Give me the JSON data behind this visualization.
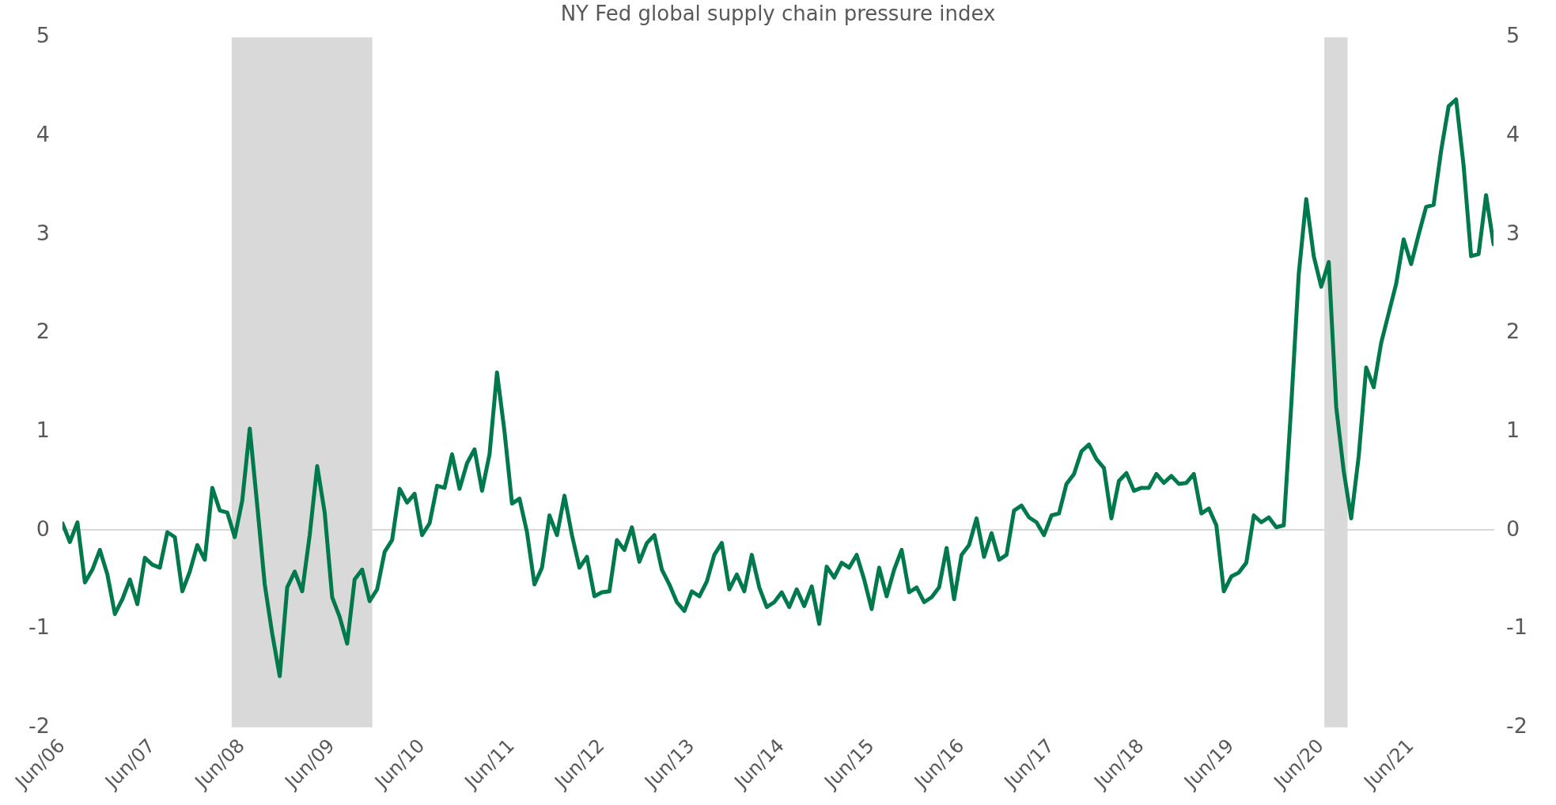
{
  "chart_data": {
    "type": "line",
    "title": "NY Fed global supply chain pressure index",
    "color": "#007a4c",
    "x": [
      "2006-06",
      "2006-07",
      "2006-08",
      "2006-09",
      "2006-10",
      "2006-11",
      "2006-12",
      "2007-01",
      "2007-02",
      "2007-03",
      "2007-04",
      "2007-05",
      "2007-06",
      "2007-07",
      "2007-08",
      "2007-09",
      "2007-10",
      "2007-11",
      "2007-12",
      "2008-01",
      "2008-02",
      "2008-03",
      "2008-04",
      "2008-05",
      "2008-06",
      "2008-07",
      "2008-08",
      "2008-09",
      "2008-10",
      "2008-11",
      "2008-12",
      "2009-01",
      "2009-02",
      "2009-03",
      "2009-04",
      "2009-05",
      "2009-06",
      "2009-07",
      "2009-08",
      "2009-09",
      "2009-10",
      "2009-11",
      "2009-12",
      "2010-01",
      "2010-02",
      "2010-03",
      "2010-04",
      "2010-05",
      "2010-06",
      "2010-07",
      "2010-08",
      "2010-09",
      "2010-10",
      "2010-11",
      "2010-12",
      "2011-01",
      "2011-02",
      "2011-03",
      "2011-04",
      "2011-05",
      "2011-06",
      "2011-07",
      "2011-08",
      "2011-09",
      "2011-10",
      "2011-11",
      "2011-12",
      "2012-01",
      "2012-02",
      "2012-03",
      "2012-04",
      "2012-05",
      "2012-06",
      "2012-07",
      "2012-08",
      "2012-09",
      "2012-10",
      "2012-11",
      "2012-12",
      "2013-01",
      "2013-02",
      "2013-03",
      "2013-04",
      "2013-05",
      "2013-06",
      "2013-07",
      "2013-08",
      "2013-09",
      "2013-10",
      "2013-11",
      "2013-12",
      "2014-01",
      "2014-02",
      "2014-03",
      "2014-04",
      "2014-05",
      "2014-06",
      "2014-07",
      "2014-08",
      "2014-09",
      "2014-10",
      "2014-11",
      "2014-12",
      "2015-01",
      "2015-02",
      "2015-03",
      "2015-04",
      "2015-05",
      "2015-06",
      "2015-07",
      "2015-08",
      "2015-09",
      "2015-10",
      "2015-11",
      "2015-12",
      "2016-01",
      "2016-02",
      "2016-03",
      "2016-04",
      "2016-05",
      "2016-06",
      "2016-07",
      "2016-08",
      "2016-09",
      "2016-10",
      "2016-11",
      "2016-12",
      "2017-01",
      "2017-02",
      "2017-03",
      "2017-04",
      "2017-05",
      "2017-06",
      "2017-07",
      "2017-08",
      "2017-09",
      "2017-10",
      "2017-11",
      "2017-12",
      "2018-01",
      "2018-02",
      "2018-03",
      "2018-04",
      "2018-05",
      "2018-06",
      "2018-07",
      "2018-08",
      "2018-09",
      "2018-10",
      "2018-11",
      "2018-12",
      "2019-01",
      "2019-02",
      "2019-03",
      "2019-04",
      "2019-05",
      "2019-06",
      "2019-07",
      "2019-08",
      "2019-09",
      "2019-10",
      "2019-11",
      "2019-12",
      "2020-01",
      "2020-02",
      "2020-03",
      "2020-04",
      "2020-05",
      "2020-06",
      "2020-07",
      "2020-08",
      "2020-09",
      "2020-10",
      "2020-11",
      "2020-12",
      "2021-01",
      "2021-02",
      "2021-03",
      "2021-04",
      "2021-05",
      "2021-06",
      "2021-07",
      "2021-08",
      "2021-09",
      "2021-10",
      "2021-11",
      "2021-12",
      "2022-01",
      "2022-02",
      "2022-03",
      "2022-04",
      "2022-05"
    ],
    "values": [
      0.07,
      -0.12,
      0.08,
      -0.53,
      -0.4,
      -0.2,
      -0.45,
      -0.85,
      -0.7,
      -0.5,
      -0.75,
      -0.28,
      -0.35,
      -0.38,
      -0.02,
      -0.07,
      -0.62,
      -0.42,
      -0.15,
      -0.3,
      0.43,
      0.2,
      0.18,
      -0.07,
      0.3,
      1.03,
      0.25,
      -0.55,
      -1.05,
      -1.48,
      -0.58,
      -0.42,
      -0.62,
      -0.05,
      0.65,
      0.18,
      -0.68,
      -0.88,
      -1.15,
      -0.5,
      -0.4,
      -0.72,
      -0.6,
      -0.22,
      -0.1,
      0.42,
      0.28,
      0.37,
      -0.05,
      0.07,
      0.45,
      0.43,
      0.77,
      0.42,
      0.68,
      0.82,
      0.4,
      0.77,
      1.6,
      1.0,
      0.27,
      0.32,
      -0.02,
      -0.55,
      -0.38,
      0.15,
      -0.05,
      0.35,
      -0.05,
      -0.38,
      -0.27,
      -0.67,
      -0.63,
      -0.62,
      -0.1,
      -0.2,
      0.03,
      -0.32,
      -0.13,
      -0.05,
      -0.4,
      -0.55,
      -0.73,
      -0.82,
      -0.62,
      -0.67,
      -0.52,
      -0.25,
      -0.13,
      -0.6,
      -0.45,
      -0.62,
      -0.25,
      -0.58,
      -0.78,
      -0.73,
      -0.63,
      -0.78,
      -0.6,
      -0.77,
      -0.57,
      -0.95,
      -0.37,
      -0.48,
      -0.33,
      -0.38,
      -0.25,
      -0.5,
      -0.8,
      -0.38,
      -0.67,
      -0.4,
      -0.2,
      -0.63,
      -0.58,
      -0.73,
      -0.68,
      -0.58,
      -0.18,
      -0.7,
      -0.25,
      -0.15,
      0.12,
      -0.27,
      -0.03,
      -0.3,
      -0.25,
      0.2,
      0.25,
      0.13,
      0.08,
      -0.05,
      0.15,
      0.17,
      0.47,
      0.57,
      0.8,
      0.87,
      0.72,
      0.63,
      0.12,
      0.5,
      0.58,
      0.4,
      0.43,
      0.43,
      0.57,
      0.48,
      0.55,
      0.47,
      0.48,
      0.57,
      0.17,
      0.22,
      0.05,
      -0.62,
      -0.47,
      -0.43,
      -0.33,
      0.15,
      0.08,
      0.13,
      0.03,
      0.05,
      1.27,
      2.6,
      3.36,
      2.78,
      2.47,
      2.72,
      1.25,
      0.6,
      0.12,
      0.75,
      1.65,
      1.45,
      1.9,
      2.2,
      2.5,
      2.95,
      2.7,
      3.0,
      3.28,
      3.3,
      3.85,
      4.3,
      4.37,
      3.7,
      2.78,
      2.8,
      3.4,
      2.9
    ],
    "xlim": [
      "2006-06",
      "2022-05"
    ],
    "xticks": [
      {
        "value": "2006-06",
        "label": "Jun/06"
      },
      {
        "value": "2007-06",
        "label": "Jun/07"
      },
      {
        "value": "2008-06",
        "label": "Jun/08"
      },
      {
        "value": "2009-06",
        "label": "Jun/09"
      },
      {
        "value": "2010-06",
        "label": "Jun/10"
      },
      {
        "value": "2011-06",
        "label": "Jun/11"
      },
      {
        "value": "2012-06",
        "label": "Jun/12"
      },
      {
        "value": "2013-06",
        "label": "Jun/13"
      },
      {
        "value": "2014-06",
        "label": "Jun/14"
      },
      {
        "value": "2015-06",
        "label": "Jun/15"
      },
      {
        "value": "2016-06",
        "label": "Jun/16"
      },
      {
        "value": "2017-06",
        "label": "Jun/17"
      },
      {
        "value": "2018-06",
        "label": "Jun/18"
      },
      {
        "value": "2019-06",
        "label": "Jun/19"
      },
      {
        "value": "2020-06",
        "label": "Jun/20"
      },
      {
        "value": "2021-06",
        "label": "Jun/21"
      }
    ],
    "ylim": [
      -2,
      5
    ],
    "yticks": [
      -2,
      -1,
      0,
      1,
      2,
      3,
      4,
      5
    ],
    "y2lim": [
      -2,
      5
    ],
    "y2ticks": [
      -2,
      -1,
      0,
      1,
      2,
      3,
      4,
      5
    ],
    "bands": [
      {
        "axis": "x",
        "from": "2008-04-19",
        "to": "2009-11-12",
        "color": "#d9d9d9"
      },
      {
        "axis": "x",
        "from": "2020-06-14",
        "to": "2020-09-17",
        "color": "#d9d9d9"
      }
    ]
  }
}
